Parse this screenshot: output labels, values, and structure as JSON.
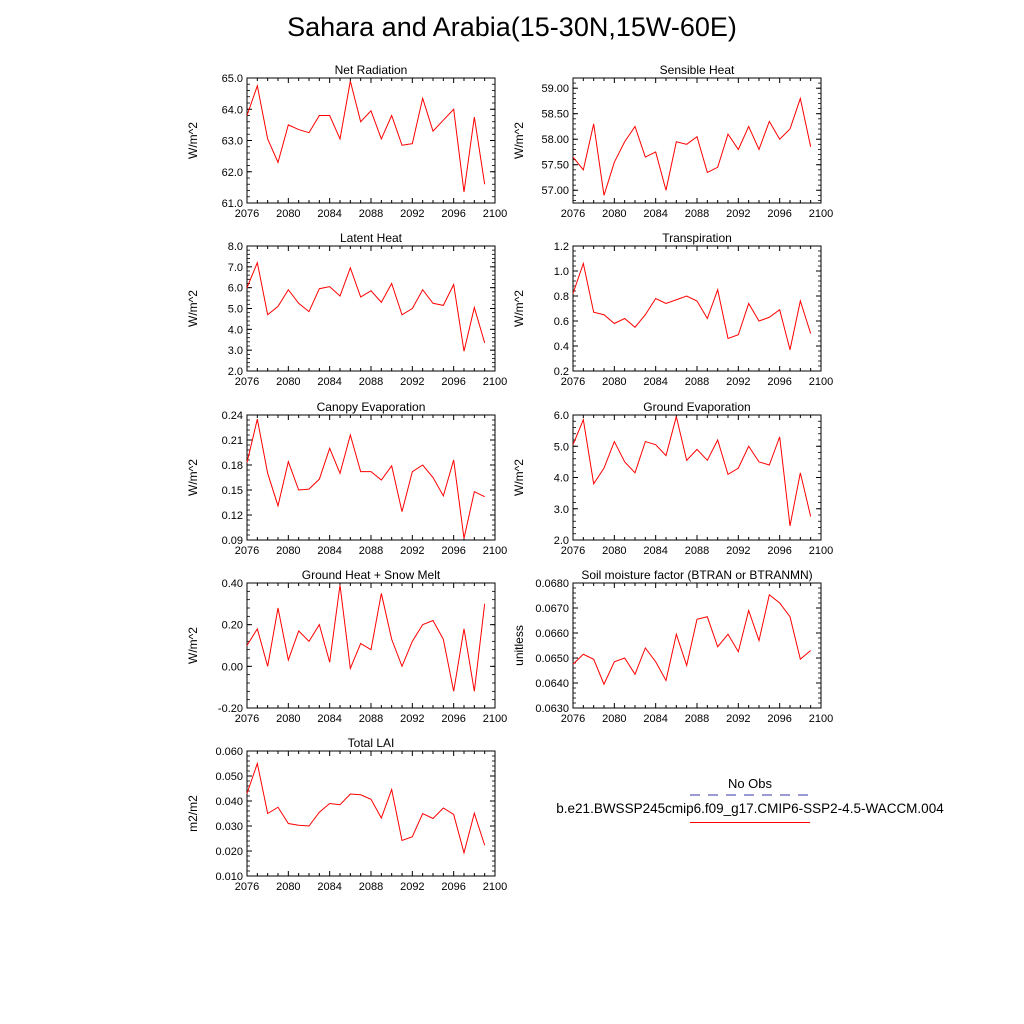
{
  "figure": {
    "title": "Sahara and Arabia(15-30N,15W-60E)"
  },
  "legend": {
    "obs_label": "No Obs",
    "case_label": "b.e21.BWSSP245cmip6.f09_g17.CMIP6-SSP2-4.5-WACCM.004",
    "line_color": "#ff0000",
    "obs_color": "#3333aa"
  },
  "chart_data": [
    {
      "type": "line",
      "title": "Net Radiation",
      "ylabel": "W/m^2",
      "xlim": [
        2076,
        2100
      ],
      "xticks": [
        "2076",
        "2080",
        "2084",
        "2088",
        "2092",
        "2096",
        "2100"
      ],
      "ylim": [
        61.0,
        65.0
      ],
      "yticks": [
        "61.0",
        "62.0",
        "63.0",
        "64.0",
        "65.0"
      ],
      "x": [
        2076,
        2077,
        2078,
        2079,
        2080,
        2081,
        2082,
        2083,
        2084,
        2085,
        2086,
        2087,
        2088,
        2089,
        2090,
        2091,
        2092,
        2093,
        2094,
        2095,
        2096,
        2097,
        2098,
        2099
      ],
      "y": [
        63.8,
        64.75,
        63.05,
        62.3,
        63.5,
        63.35,
        63.25,
        63.8,
        63.8,
        63.05,
        64.9,
        63.6,
        63.95,
        63.05,
        63.8,
        62.85,
        62.9,
        64.35,
        63.3,
        63.65,
        64.0,
        61.35,
        63.75,
        61.6
      ]
    },
    {
      "type": "line",
      "title": "Sensible Heat",
      "ylabel": "W/m^2",
      "xlim": [
        2076,
        2100
      ],
      "xticks": [
        "2076",
        "2080",
        "2084",
        "2088",
        "2092",
        "2096",
        "2100"
      ],
      "ylim": [
        56.75,
        59.2
      ],
      "yticks": [
        "57.00",
        "57.50",
        "58.00",
        "58.50",
        "59.00"
      ],
      "x": [
        2076,
        2077,
        2078,
        2079,
        2080,
        2081,
        2082,
        2083,
        2084,
        2085,
        2086,
        2087,
        2088,
        2089,
        2090,
        2091,
        2092,
        2093,
        2094,
        2095,
        2096,
        2097,
        2098,
        2099
      ],
      "y": [
        57.65,
        57.4,
        58.3,
        56.9,
        57.55,
        57.95,
        58.25,
        57.65,
        57.75,
        57.0,
        57.95,
        57.9,
        58.05,
        57.35,
        57.45,
        58.1,
        57.8,
        58.25,
        57.8,
        58.35,
        58.0,
        58.2,
        58.8,
        57.85
      ]
    },
    {
      "type": "line",
      "title": "Latent Heat",
      "ylabel": "W/m^2",
      "xlim": [
        2076,
        2100
      ],
      "xticks": [
        "2076",
        "2080",
        "2084",
        "2088",
        "2092",
        "2096",
        "2100"
      ],
      "ylim": [
        2.0,
        8.0
      ],
      "yticks": [
        "2.0",
        "3.0",
        "4.0",
        "5.0",
        "6.0",
        "7.0",
        "8.0"
      ],
      "x": [
        2076,
        2077,
        2078,
        2079,
        2080,
        2081,
        2082,
        2083,
        2084,
        2085,
        2086,
        2087,
        2088,
        2089,
        2090,
        2091,
        2092,
        2093,
        2094,
        2095,
        2096,
        2097,
        2098,
        2099
      ],
      "y": [
        6.0,
        7.2,
        4.7,
        5.1,
        5.9,
        5.25,
        4.85,
        5.95,
        6.05,
        5.6,
        6.95,
        5.55,
        5.85,
        5.3,
        6.2,
        4.7,
        5.0,
        5.9,
        5.25,
        5.15,
        6.15,
        2.95,
        5.05,
        3.35
      ]
    },
    {
      "type": "line",
      "title": "Transpiration",
      "ylabel": "W/m^2",
      "xlim": [
        2076,
        2100
      ],
      "xticks": [
        "2076",
        "2080",
        "2084",
        "2088",
        "2092",
        "2096",
        "2100"
      ],
      "ylim": [
        0.2,
        1.2
      ],
      "yticks": [
        "0.2",
        "0.4",
        "0.6",
        "0.8",
        "1.0",
        "1.2"
      ],
      "x": [
        2076,
        2077,
        2078,
        2079,
        2080,
        2081,
        2082,
        2083,
        2084,
        2085,
        2086,
        2087,
        2088,
        2089,
        2090,
        2091,
        2092,
        2093,
        2094,
        2095,
        2096,
        2097,
        2098,
        2099
      ],
      "y": [
        0.82,
        1.06,
        0.67,
        0.65,
        0.58,
        0.62,
        0.55,
        0.65,
        0.78,
        0.74,
        0.77,
        0.8,
        0.76,
        0.62,
        0.85,
        0.46,
        0.49,
        0.74,
        0.6,
        0.63,
        0.69,
        0.37,
        0.76,
        0.5
      ]
    },
    {
      "type": "line",
      "title": "Canopy Evaporation",
      "ylabel": "W/m^2",
      "xlim": [
        2076,
        2100
      ],
      "xticks": [
        "2076",
        "2080",
        "2084",
        "2088",
        "2092",
        "2096",
        "2100"
      ],
      "ylim": [
        0.09,
        0.24
      ],
      "yticks": [
        "0.09",
        "0.12",
        "0.15",
        "0.18",
        "0.21",
        "0.24"
      ],
      "x": [
        2076,
        2077,
        2078,
        2079,
        2080,
        2081,
        2082,
        2083,
        2084,
        2085,
        2086,
        2087,
        2088,
        2089,
        2090,
        2091,
        2092,
        2093,
        2094,
        2095,
        2096,
        2097,
        2098,
        2099
      ],
      "y": [
        0.183,
        0.235,
        0.17,
        0.131,
        0.184,
        0.15,
        0.151,
        0.163,
        0.2,
        0.17,
        0.216,
        0.172,
        0.172,
        0.162,
        0.179,
        0.124,
        0.172,
        0.18,
        0.165,
        0.143,
        0.186,
        0.092,
        0.148,
        0.142
      ]
    },
    {
      "type": "line",
      "title": "Ground Evaporation",
      "ylabel": "W/m^2",
      "xlim": [
        2076,
        2100
      ],
      "xticks": [
        "2076",
        "2080",
        "2084",
        "2088",
        "2092",
        "2096",
        "2100"
      ],
      "ylim": [
        2.0,
        6.0
      ],
      "yticks": [
        "2.0",
        "3.0",
        "4.0",
        "5.0",
        "6.0"
      ],
      "x": [
        2076,
        2077,
        2078,
        2079,
        2080,
        2081,
        2082,
        2083,
        2084,
        2085,
        2086,
        2087,
        2088,
        2089,
        2090,
        2091,
        2092,
        2093,
        2094,
        2095,
        2096,
        2097,
        2098,
        2099
      ],
      "y": [
        5.05,
        5.85,
        3.8,
        4.3,
        5.15,
        4.5,
        4.15,
        5.15,
        5.05,
        4.7,
        5.95,
        4.55,
        4.9,
        4.55,
        5.2,
        4.1,
        4.3,
        5.0,
        4.5,
        4.4,
        5.3,
        2.45,
        4.15,
        2.75
      ]
    },
    {
      "type": "line",
      "title": "Ground Heat + Snow Melt",
      "ylabel": "W/m^2",
      "xlim": [
        2076,
        2100
      ],
      "xticks": [
        "2076",
        "2080",
        "2084",
        "2088",
        "2092",
        "2096",
        "2100"
      ],
      "ylim": [
        -0.2,
        0.4
      ],
      "yticks": [
        "-0.20",
        "0.00",
        "0.20",
        "0.40"
      ],
      "x": [
        2076,
        2077,
        2078,
        2079,
        2080,
        2081,
        2082,
        2083,
        2084,
        2085,
        2086,
        2087,
        2088,
        2089,
        2090,
        2091,
        2092,
        2093,
        2094,
        2095,
        2096,
        2097,
        2098,
        2099
      ],
      "y": [
        0.1,
        0.18,
        0.0,
        0.28,
        0.03,
        0.17,
        0.12,
        0.2,
        0.02,
        0.39,
        -0.01,
        0.11,
        0.08,
        0.35,
        0.13,
        0.0,
        0.12,
        0.2,
        0.22,
        0.13,
        -0.12,
        0.18,
        -0.12,
        0.3
      ]
    },
    {
      "type": "line",
      "title": "Soil moisture factor (BTRAN or BTRANMN)",
      "ylabel": "unitless",
      "xlim": [
        2076,
        2100
      ],
      "xticks": [
        "2076",
        "2080",
        "2084",
        "2088",
        "2092",
        "2096",
        "2100"
      ],
      "ylim": [
        0.063,
        0.068
      ],
      "yticks": [
        "0.0630",
        "0.0640",
        "0.0650",
        "0.0660",
        "0.0670",
        "0.0680"
      ],
      "x": [
        2076,
        2077,
        2078,
        2079,
        2080,
        2081,
        2082,
        2083,
        2084,
        2085,
        2086,
        2087,
        2088,
        2089,
        2090,
        2091,
        2092,
        2093,
        2094,
        2095,
        2096,
        2097,
        2098,
        2099
      ],
      "y": [
        0.06475,
        0.06515,
        0.06495,
        0.06395,
        0.06485,
        0.065,
        0.06435,
        0.0654,
        0.06485,
        0.0641,
        0.06595,
        0.0647,
        0.06655,
        0.06665,
        0.06545,
        0.06595,
        0.06525,
        0.0669,
        0.0657,
        0.06753,
        0.0672,
        0.06665,
        0.06495,
        0.0653
      ]
    },
    {
      "type": "line",
      "title": "Total LAI",
      "ylabel": "m2/m2",
      "xlim": [
        2076,
        2100
      ],
      "xticks": [
        "2076",
        "2080",
        "2084",
        "2088",
        "2092",
        "2096",
        "2100"
      ],
      "ylim": [
        0.01,
        0.06
      ],
      "yticks": [
        "0.010",
        "0.020",
        "0.030",
        "0.040",
        "0.050",
        "0.060"
      ],
      "x": [
        2076,
        2077,
        2078,
        2079,
        2080,
        2081,
        2082,
        2083,
        2084,
        2085,
        2086,
        2087,
        2088,
        2089,
        2090,
        2091,
        2092,
        2093,
        2094,
        2095,
        2096,
        2097,
        2098,
        2099
      ],
      "y": [
        0.043,
        0.055,
        0.035,
        0.0375,
        0.031,
        0.0303,
        0.03,
        0.0355,
        0.039,
        0.0385,
        0.0428,
        0.0425,
        0.0407,
        0.0332,
        0.0446,
        0.0242,
        0.0257,
        0.035,
        0.033,
        0.0372,
        0.0346,
        0.0193,
        0.0351,
        0.0223
      ]
    }
  ]
}
